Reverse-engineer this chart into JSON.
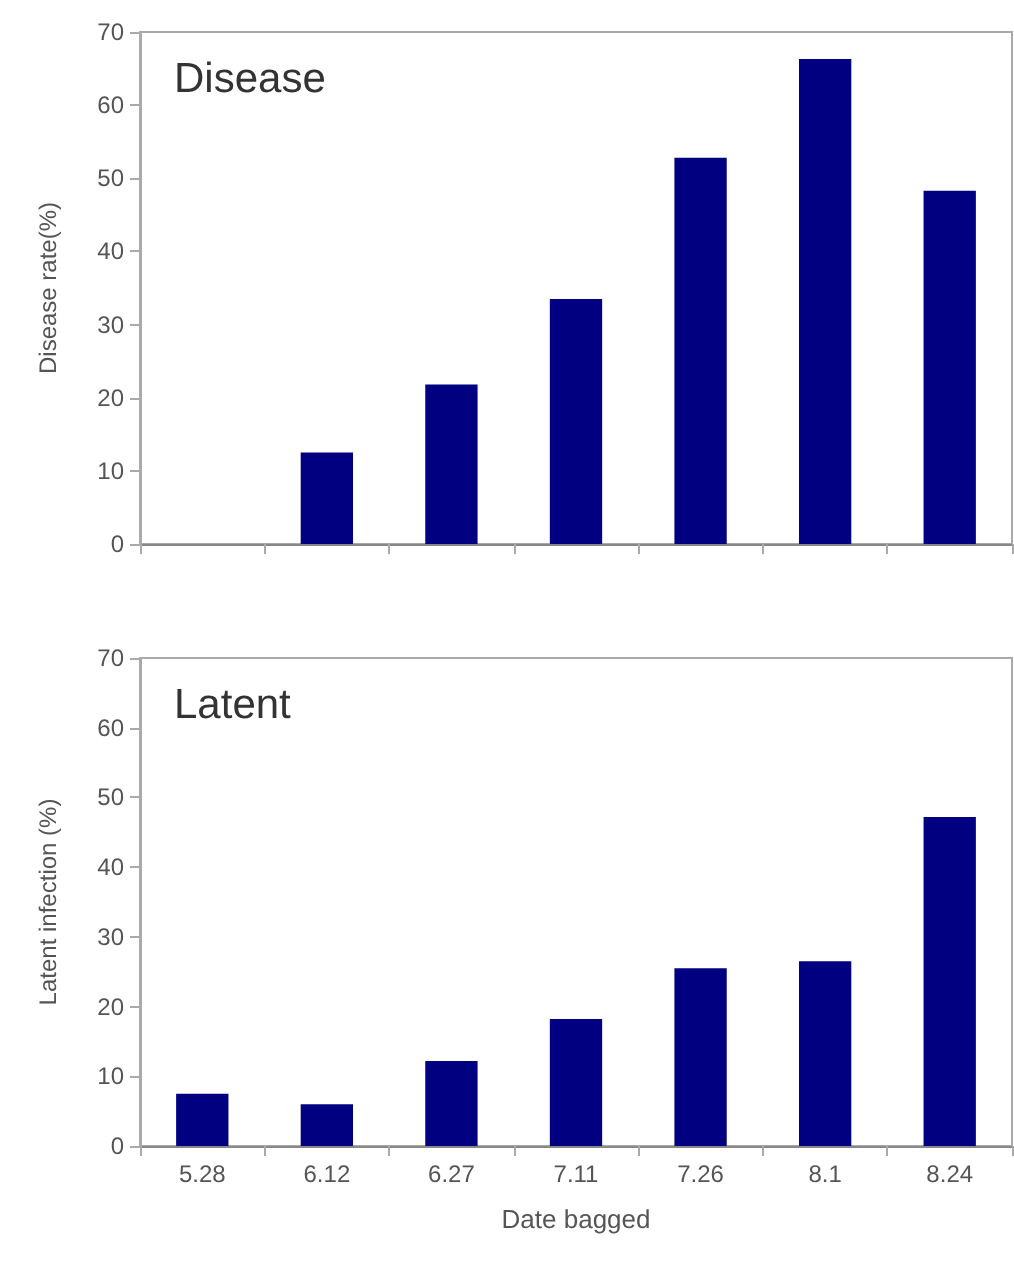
{
  "chart_data": [
    {
      "type": "bar",
      "title": "Disease",
      "ylabel": "Disease rate(%)",
      "categories": [
        "5.28",
        "6.12",
        "6.27",
        "7.11",
        "7.26",
        "8.1",
        "8.24"
      ],
      "values": [
        0,
        12.5,
        21.8,
        33.5,
        52.8,
        66.3,
        48.3
      ],
      "color": "#000080",
      "ylim": [
        0,
        70
      ],
      "yticks": [
        0,
        10,
        20,
        30,
        40,
        50,
        60,
        70
      ],
      "grid": false,
      "tick_labels": "y"
    },
    {
      "type": "bar",
      "title": "Latent",
      "xlabel": "Date bagged",
      "ylabel": "Latent infection (%)",
      "categories": [
        "5.28",
        "6.12",
        "6.27",
        "7.11",
        "7.26",
        "8.1",
        "8.24"
      ],
      "values": [
        7.5,
        6,
        12.2,
        18.2,
        25.5,
        26.5,
        47.2
      ],
      "color": "#000080",
      "ylim": [
        0,
        70
      ],
      "yticks": [
        0,
        10,
        20,
        30,
        40,
        50,
        60,
        70
      ],
      "grid": false
    }
  ]
}
